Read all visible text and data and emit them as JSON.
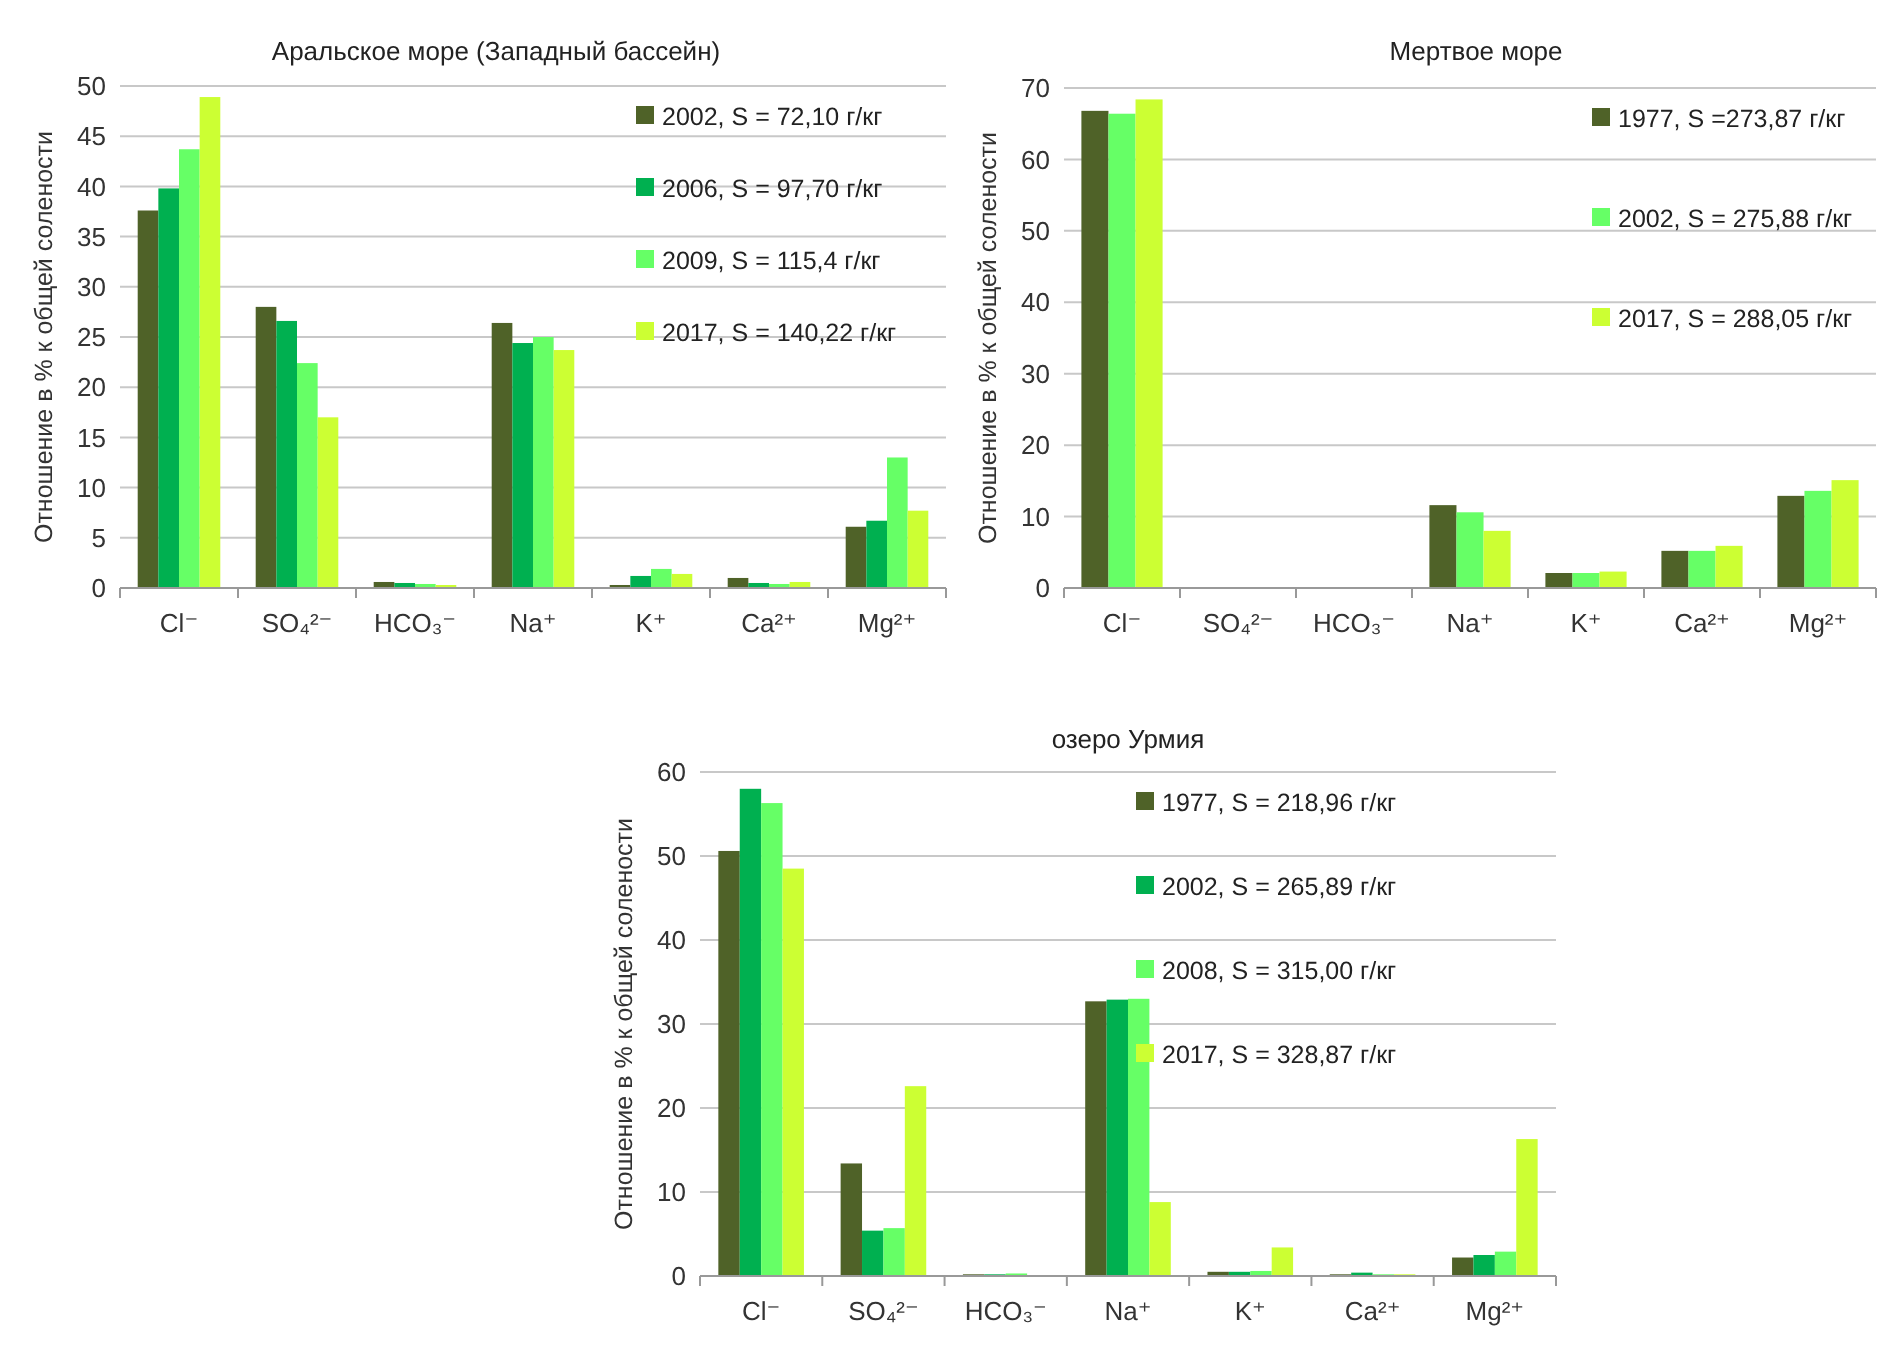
{
  "chart_data": [
    {
      "type": "bar",
      "title": "Аральское море (Западный бассейн)",
      "ylabel": "Отношение в % к общей солености",
      "categories": [
        "Cl⁻",
        "SO₄²⁻",
        "HCO₃⁻",
        "Na⁺",
        "K⁺",
        "Ca²⁺",
        "Mg²⁺"
      ],
      "ylim": [
        0,
        50
      ],
      "yticks": [
        0,
        5,
        10,
        15,
        20,
        25,
        30,
        35,
        40,
        45,
        50
      ],
      "grid": "y",
      "legend": "top right",
      "series": [
        {
          "name": "2002, S = 72,10 г/кг",
          "color": "#4f6228",
          "values": [
            37.6,
            28.0,
            0.6,
            26.4,
            0.3,
            1.0,
            6.1
          ]
        },
        {
          "name": "2006, S = 97,70 г/кг",
          "color": "#00b050",
          "values": [
            39.8,
            26.6,
            0.5,
            24.4,
            1.2,
            0.5,
            6.7
          ]
        },
        {
          "name": "2009, S = 115,4 г/кг",
          "color": "#66ff66",
          "values": [
            43.7,
            22.4,
            0.4,
            25.0,
            1.9,
            0.4,
            13.0
          ]
        },
        {
          "name": "2017, S = 140,22 г/кг",
          "color": "#ccff33",
          "values": [
            48.9,
            17.0,
            0.3,
            23.7,
            1.4,
            0.6,
            7.7
          ]
        }
      ]
    },
    {
      "type": "bar",
      "title": "Мертвое море",
      "ylabel": "Отношение в % к общей солености",
      "categories": [
        "Cl⁻",
        "SO₄²⁻",
        "HCO₃⁻",
        "Na⁺",
        "K⁺",
        "Ca²⁺",
        "Mg²⁺"
      ],
      "ylim": [
        0,
        70
      ],
      "yticks": [
        0,
        10,
        20,
        30,
        40,
        50,
        60,
        70
      ],
      "grid": "y",
      "legend": "top right",
      "series": [
        {
          "name": "1977, S =273,87 г/кг",
          "color": "#4f6228",
          "values": [
            66.8,
            null,
            null,
            11.6,
            2.1,
            5.2,
            12.9
          ]
        },
        {
          "name": "2002, S = 275,88 г/кг",
          "color": "#66ff66",
          "values": [
            66.4,
            null,
            null,
            10.6,
            2.1,
            5.2,
            13.6
          ]
        },
        {
          "name": "2017, S = 288,05 г/кг",
          "color": "#ccff33",
          "values": [
            68.4,
            null,
            null,
            8.0,
            2.3,
            5.9,
            15.1
          ]
        }
      ]
    },
    {
      "type": "bar",
      "title": "озеро Урмия",
      "ylabel": "Отношение в % к общей солености",
      "categories": [
        "Cl⁻",
        "SO₄²⁻",
        "HCO₃⁻",
        "Na⁺",
        "K⁺",
        "Ca²⁺",
        "Mg²⁺"
      ],
      "ylim": [
        0,
        60
      ],
      "yticks": [
        0,
        10,
        20,
        30,
        40,
        50,
        60
      ],
      "grid": "y",
      "legend": "top right",
      "series": [
        {
          "name": "1977, S = 218,96 г/кг",
          "color": "#4f6228",
          "values": [
            50.6,
            13.4,
            0.2,
            32.7,
            0.5,
            0.2,
            2.2
          ]
        },
        {
          "name": "2002, S = 265,89 г/кг",
          "color": "#00b050",
          "values": [
            58.0,
            5.4,
            0.2,
            32.9,
            0.5,
            0.4,
            2.5
          ]
        },
        {
          "name": "2008, S = 315,00 г/кг",
          "color": "#66ff66",
          "values": [
            56.3,
            5.7,
            0.3,
            33.0,
            0.6,
            0.2,
            2.9
          ]
        },
        {
          "name": "2017, S = 328,87 г/кг",
          "color": "#ccff33",
          "values": [
            48.5,
            22.6,
            0.1,
            8.8,
            3.4,
            0.2,
            16.3
          ]
        }
      ]
    }
  ]
}
